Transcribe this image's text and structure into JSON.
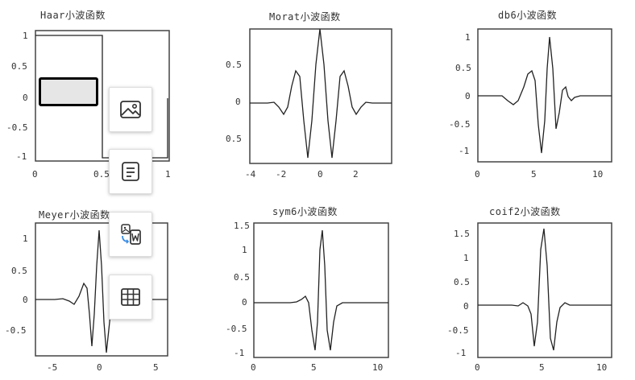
{
  "panels": [
    {
      "title": "Haar小波函数",
      "xticks": [
        "0",
        "0.5",
        "1"
      ],
      "yticks": [
        "1",
        "0.5",
        "0",
        "-0.5",
        "-1"
      ]
    },
    {
      "title": "Morat小波函数",
      "xticks": [
        "-4",
        "-2",
        "0",
        "2"
      ],
      "yticks": [
        "0.5",
        "0",
        "0.5"
      ]
    },
    {
      "title": "db6小波函数",
      "xticks": [
        "0",
        "5",
        "10"
      ],
      "yticks": [
        "1",
        "0.5",
        "0",
        "-0.5",
        "-1"
      ]
    },
    {
      "title": "Meyer小波函数",
      "xticks": [
        "-5",
        "0",
        "5"
      ],
      "yticks": [
        "1",
        "0.5",
        "0",
        "-0.5"
      ]
    },
    {
      "title": "sym6小波函数",
      "xticks": [
        "0",
        "5",
        "10"
      ],
      "yticks": [
        "1.5",
        "1",
        "0.5",
        "0",
        "-0.5",
        "-1"
      ]
    },
    {
      "title": "coif2小波函数",
      "xticks": [
        "0",
        "5",
        "10"
      ],
      "yticks": [
        "1.5",
        "1",
        "0.5",
        "0",
        "-0.5",
        "-1"
      ]
    }
  ],
  "toolbar": {
    "buttons": [
      {
        "name": "image",
        "icon": "image-icon"
      },
      {
        "name": "text",
        "icon": "text-document-icon"
      },
      {
        "name": "convert-to-word",
        "icon": "convert-to-word-icon"
      },
      {
        "name": "table",
        "icon": "table-icon"
      }
    ]
  }
}
